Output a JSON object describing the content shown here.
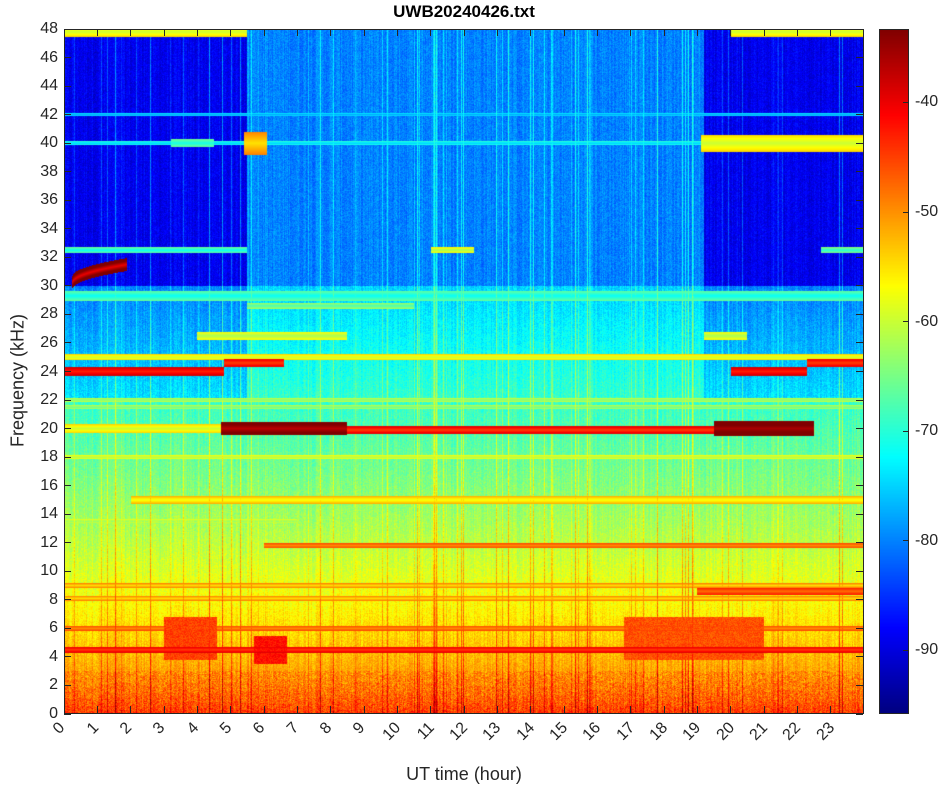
{
  "chart_data": {
    "type": "heatmap",
    "title": "UWB20240426.txt",
    "xlabel": "UT time (hour)",
    "ylabel": "Frequency (kHz)",
    "xlim": [
      0,
      24
    ],
    "ylim": [
      0,
      48
    ],
    "xticks": [
      0,
      1,
      2,
      3,
      4,
      5,
      6,
      7,
      8,
      9,
      10,
      11,
      12,
      13,
      14,
      15,
      16,
      17,
      18,
      19,
      20,
      21,
      22,
      23
    ],
    "yticks": [
      0,
      2,
      4,
      6,
      8,
      10,
      12,
      14,
      16,
      18,
      20,
      22,
      24,
      26,
      28,
      30,
      32,
      34,
      36,
      38,
      40,
      42,
      44,
      46,
      48
    ],
    "colormap": "jet",
    "clim": [
      -95.8,
      -33.3
    ],
    "colorbar_ticks": [
      -40,
      -50,
      -60,
      -70,
      -80,
      -90
    ],
    "background": {
      "low_freq_level_db": -45,
      "level_at_30khz_db": -75,
      "upper_band_day_db": -80,
      "upper_band_night_db": -89,
      "night_hours": [
        [
          0,
          5.5
        ],
        [
          19.2,
          24
        ]
      ]
    },
    "narrowband_lines": [
      {
        "freq": 47.8,
        "t": [
          0,
          5.5
        ],
        "db": -60,
        "width": 0.35
      },
      {
        "freq": 47.8,
        "t": [
          20,
          24
        ],
        "db": -60,
        "width": 0.35
      },
      {
        "freq": 42,
        "t": [
          0,
          24
        ],
        "db": -78,
        "width": 0.12
      },
      {
        "freq": 40,
        "t": [
          0,
          24
        ],
        "db": -76,
        "width": 0.12
      },
      {
        "freq": 40,
        "t": [
          3.2,
          4.5
        ],
        "db": -71,
        "width": 0.3
      },
      {
        "freq": 40,
        "t": [
          5.4,
          6.1
        ],
        "db": -55,
        "width": 0.8
      },
      {
        "freq": 40,
        "t": [
          19.1,
          24
        ],
        "db": -60,
        "width": 0.6
      },
      {
        "freq": 32.5,
        "t": [
          0,
          5.5
        ],
        "db": -72,
        "width": 0.2
      },
      {
        "freq": 32.5,
        "t": [
          11,
          12.3
        ],
        "db": -62,
        "width": 0.2
      },
      {
        "freq": 32.5,
        "t": [
          22.7,
          24
        ],
        "db": -70,
        "width": 0.2
      },
      {
        "freq": 29.3,
        "t": [
          0,
          24
        ],
        "db": -72,
        "width": 0.35
      },
      {
        "freq": 28.6,
        "t": [
          5.5,
          10.5
        ],
        "db": -68,
        "width": 0.2
      },
      {
        "freq": 26.5,
        "t": [
          4,
          8.5
        ],
        "db": -62,
        "width": 0.3
      },
      {
        "freq": 26.5,
        "t": [
          19.2,
          20.5
        ],
        "db": -62,
        "width": 0.3
      },
      {
        "freq": 25,
        "t": [
          0,
          24
        ],
        "db": -60,
        "width": 0.2
      },
      {
        "freq": 24,
        "t": [
          0,
          4.8
        ],
        "db": -43,
        "width": 0.35
      },
      {
        "freq": 24,
        "t": [
          20,
          22.3
        ],
        "db": -43,
        "width": 0.35
      },
      {
        "freq": 24.6,
        "t": [
          4.8,
          6.6
        ],
        "db": -45,
        "width": 0.3
      },
      {
        "freq": 24.6,
        "t": [
          22.3,
          24
        ],
        "db": -45,
        "width": 0.3
      },
      {
        "freq": 22,
        "t": [
          0,
          24
        ],
        "db": -65,
        "width": 0.15
      },
      {
        "freq": 21.5,
        "t": [
          0,
          24
        ],
        "db": -66,
        "width": 0.15
      },
      {
        "freq": 20,
        "t": [
          0,
          4.7
        ],
        "db": -60,
        "width": 0.3
      },
      {
        "freq": 20,
        "t": [
          4.7,
          8.5
        ],
        "db": -37,
        "width": 0.45
      },
      {
        "freq": 19.9,
        "t": [
          8.5,
          19.5
        ],
        "db": -45,
        "width": 0.25
      },
      {
        "freq": 20,
        "t": [
          19.5,
          22.5
        ],
        "db": -36,
        "width": 0.5
      },
      {
        "freq": 18,
        "t": [
          0,
          24
        ],
        "db": -62,
        "width": 0.15
      },
      {
        "freq": 15,
        "t": [
          2,
          24
        ],
        "db": -58,
        "width": 0.25
      },
      {
        "freq": 13.5,
        "t": [
          0,
          7
        ],
        "db": -64,
        "width": 0.15
      },
      {
        "freq": 11.8,
        "t": [
          6,
          24
        ],
        "db": -50,
        "width": 0.2
      },
      {
        "freq": 9,
        "t": [
          0,
          24
        ],
        "db": -55,
        "width": 0.15
      },
      {
        "freq": 8.6,
        "t": [
          19,
          24
        ],
        "db": -48,
        "width": 0.25
      },
      {
        "freq": 8.1,
        "t": [
          0,
          24
        ],
        "db": -55,
        "width": 0.15
      },
      {
        "freq": 6,
        "t": [
          0,
          24
        ],
        "db": -50,
        "width": 0.2
      },
      {
        "freq": 4.5,
        "t": [
          0,
          24
        ],
        "db": -45,
        "width": 0.2
      }
    ],
    "patches": [
      {
        "f": [
          3.8,
          6.8
        ],
        "t": [
          3,
          4.6
        ],
        "db": -45
      },
      {
        "f": [
          3.5,
          5.5
        ],
        "t": [
          5.7,
          6.7
        ],
        "db": -42
      },
      {
        "f": [
          3.8,
          6.8
        ],
        "t": [
          16.8,
          21
        ],
        "db": -46
      }
    ],
    "chirps": [
      {
        "t": [
          0.25,
          1.9
        ],
        "f_start": 30.2,
        "f_end": 31.5,
        "db": -40,
        "width": 0.45
      }
    ]
  }
}
